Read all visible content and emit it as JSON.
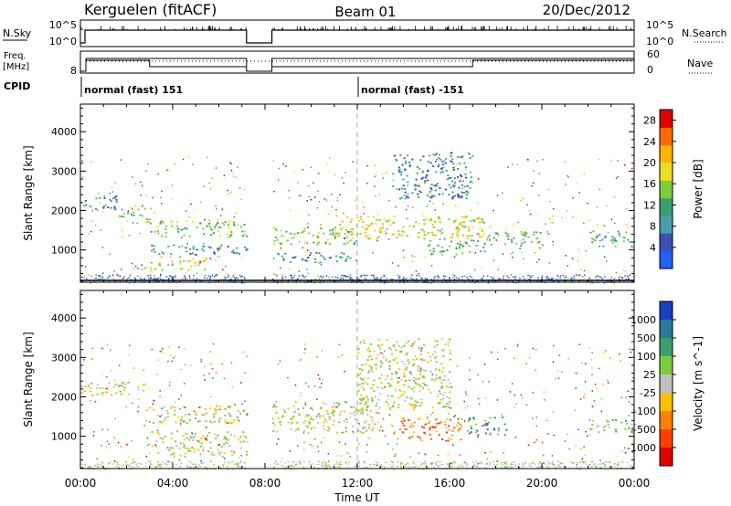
{
  "header": {
    "radar": "Kerguelen (fitACF)",
    "beam": "Beam 01",
    "date": "20/Dec/2012"
  },
  "status_panel": {
    "nsky_label": "N.Sky",
    "nsky_ticks": [
      "10^5",
      "10^0"
    ],
    "freq_label_line1": "Freq.",
    "freq_label_line2": "[MHz]",
    "freq_ticks": [
      "8"
    ],
    "nsearch_label": "N.Search",
    "nsearch_ticks": [
      "10^5",
      "10^0"
    ],
    "nave_label": "Nave",
    "nave_ticks": [
      "60",
      "0"
    ],
    "cpid_label": "CPID",
    "cpid_segments": [
      {
        "start_hour": 0,
        "label": "normal (fast) 151"
      },
      {
        "start_hour": 12,
        "label": "normal (fast) -151"
      }
    ],
    "gap_hours": [
      7.2,
      8.3
    ],
    "nave_step_hours": [
      3.0,
      17.0
    ]
  },
  "chart_data": [
    {
      "type": "heatmap",
      "title": "",
      "xlabel": "Time UT",
      "ylabel": "Slant Range [km]",
      "x_ticks": [
        "00:00",
        "04:00",
        "08:00",
        "12:00",
        "16:00",
        "20:00",
        "00:00"
      ],
      "xlim_hours": [
        0,
        24
      ],
      "y_ticks": [
        1000,
        2000,
        3000,
        4000
      ],
      "ylim_km": [
        180,
        4700
      ],
      "colorbar": {
        "label": "Power [dB]",
        "ticks": [
          4,
          8,
          12,
          16,
          20,
          24,
          28
        ],
        "range": [
          0,
          30
        ],
        "colors": [
          "#2060ff",
          "#3c50b4",
          "#4a9bb0",
          "#3aa070",
          "#7ccd3a",
          "#e8e020",
          "#ffb400",
          "#ff6a00",
          "#e00000"
        ]
      },
      "echo_bands": [
        {
          "t0": 0.0,
          "t1": 1.6,
          "r0": 2050,
          "r1": 2400,
          "level": 2
        },
        {
          "t0": 1.6,
          "t1": 2.8,
          "r0": 1850,
          "r1": 2150,
          "level": 4
        },
        {
          "t0": 2.8,
          "t1": 7.2,
          "r0": 1350,
          "r1": 1800,
          "level": 4
        },
        {
          "t0": 3.0,
          "t1": 7.2,
          "r0": 900,
          "r1": 1150,
          "level": 2
        },
        {
          "t0": 3.0,
          "t1": 5.5,
          "r0": 500,
          "r1": 850,
          "level": 5
        },
        {
          "t0": 8.3,
          "t1": 12.0,
          "r0": 1150,
          "r1": 1600,
          "level": 4
        },
        {
          "t0": 8.3,
          "t1": 12.0,
          "r0": 700,
          "r1": 950,
          "level": 2
        },
        {
          "t0": 11.0,
          "t1": 17.5,
          "r0": 1300,
          "r1": 1900,
          "level": 5
        },
        {
          "t0": 13.5,
          "t1": 17.0,
          "r0": 2300,
          "r1": 3500,
          "level": 2
        },
        {
          "t0": 15.0,
          "t1": 17.5,
          "r0": 900,
          "r1": 1300,
          "level": 3
        },
        {
          "t0": 17.5,
          "t1": 20.0,
          "r0": 1100,
          "r1": 1500,
          "level": 3
        },
        {
          "t0": 22.0,
          "t1": 24.0,
          "r0": 1100,
          "r1": 1500,
          "level": 3
        }
      ]
    },
    {
      "type": "heatmap",
      "title": "",
      "xlabel": "Time UT",
      "ylabel": "Slant Range [km]",
      "x_ticks": [
        "00:00",
        "04:00",
        "08:00",
        "12:00",
        "16:00",
        "20:00",
        "00:00"
      ],
      "xlim_hours": [
        0,
        24
      ],
      "y_ticks": [
        1000,
        2000,
        3000,
        4000
      ],
      "ylim_km": [
        180,
        4700
      ],
      "colorbar": {
        "label": "Velocity [m s^-1]",
        "ticks": [
          1000,
          500,
          100,
          25,
          -25,
          -100,
          -500,
          -1000
        ],
        "colors": [
          "#1840c0",
          "#2a7a9a",
          "#3aa070",
          "#7ccd3a",
          "#c0c0c0",
          "#ffc000",
          "#ff8000",
          "#ff4000",
          "#e00000"
        ]
      },
      "echo_bands": [
        {
          "t0": 0.0,
          "t1": 2.8,
          "r0": 2050,
          "r1": 2400,
          "level": 4
        },
        {
          "t0": 2.8,
          "t1": 7.2,
          "r0": 1350,
          "r1": 1800,
          "level": 4
        },
        {
          "t0": 3.0,
          "t1": 7.2,
          "r0": 500,
          "r1": 1150,
          "level": 4
        },
        {
          "t0": 8.3,
          "t1": 13.0,
          "r0": 1100,
          "r1": 1900,
          "level": 4
        },
        {
          "t0": 12.0,
          "t1": 16.0,
          "r0": 1700,
          "r1": 3500,
          "level": 4
        },
        {
          "t0": 13.5,
          "t1": 16.5,
          "r0": 900,
          "r1": 1500,
          "level": 6
        },
        {
          "t0": 16.5,
          "t1": 18.5,
          "r0": 1050,
          "r1": 1500,
          "level": 2
        },
        {
          "t0": 22.0,
          "t1": 24.0,
          "r0": 1100,
          "r1": 1450,
          "level": 3
        }
      ]
    }
  ]
}
